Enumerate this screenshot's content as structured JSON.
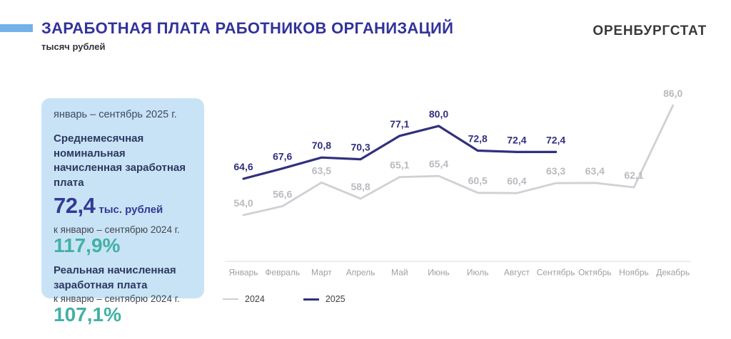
{
  "header": {
    "title": "ЗАРАБОТНАЯ ПЛАТА РАБОТНИКОВ ОРГАНИЗАЦИЙ",
    "subtitle": "тысяч рублей",
    "brand": "ОРЕНБУРГСТАТ",
    "title_color": "#33339b",
    "accent_bar_color": "#73b1e8"
  },
  "info_panel": {
    "period": "январь – сентябрь 2025 г.",
    "nominal": {
      "label": "Среднемесячная номинальная начисленная заработная плата",
      "value": "72,4",
      "unit": "тыс. рублей",
      "compare_label": "к январю – сентябрю 2024 г.",
      "compare_value": "117,9%"
    },
    "real": {
      "label": "Реальная начисленная заработная плата",
      "compare_label": "к январю – сентябрю 2024 г.",
      "compare_value": "107,1%"
    },
    "bg_color": "#c9e3f6",
    "value_color": "#333a94",
    "percent_color": "#42b1a4"
  },
  "chart_data": {
    "type": "line",
    "title": "Заработная плата работников организаций, тысяч рублей",
    "categories": [
      "Январь",
      "Февраль",
      "Март",
      "Апрель",
      "Май",
      "Июнь",
      "Июль",
      "Август",
      "Сентябрь",
      "Октябрь",
      "Ноябрь",
      "Декабрь"
    ],
    "series": [
      {
        "name": "2024",
        "color": "#d0d0d5",
        "label_color": "#babac0",
        "values": [
          54.0,
          56.6,
          63.5,
          58.8,
          65.1,
          65.4,
          60.5,
          60.4,
          63.3,
          63.4,
          62.1,
          86.0
        ]
      },
      {
        "name": "2025",
        "color": "#31307d",
        "label_color": "#31307d",
        "values": [
          64.6,
          67.6,
          70.8,
          70.3,
          77.1,
          80.0,
          72.8,
          72.4,
          72.4
        ]
      }
    ],
    "ylim": [
      50,
      90
    ],
    "grid": false,
    "legend_position": "bottom-left",
    "value_decimal_separator": ",",
    "data_labels": true
  }
}
